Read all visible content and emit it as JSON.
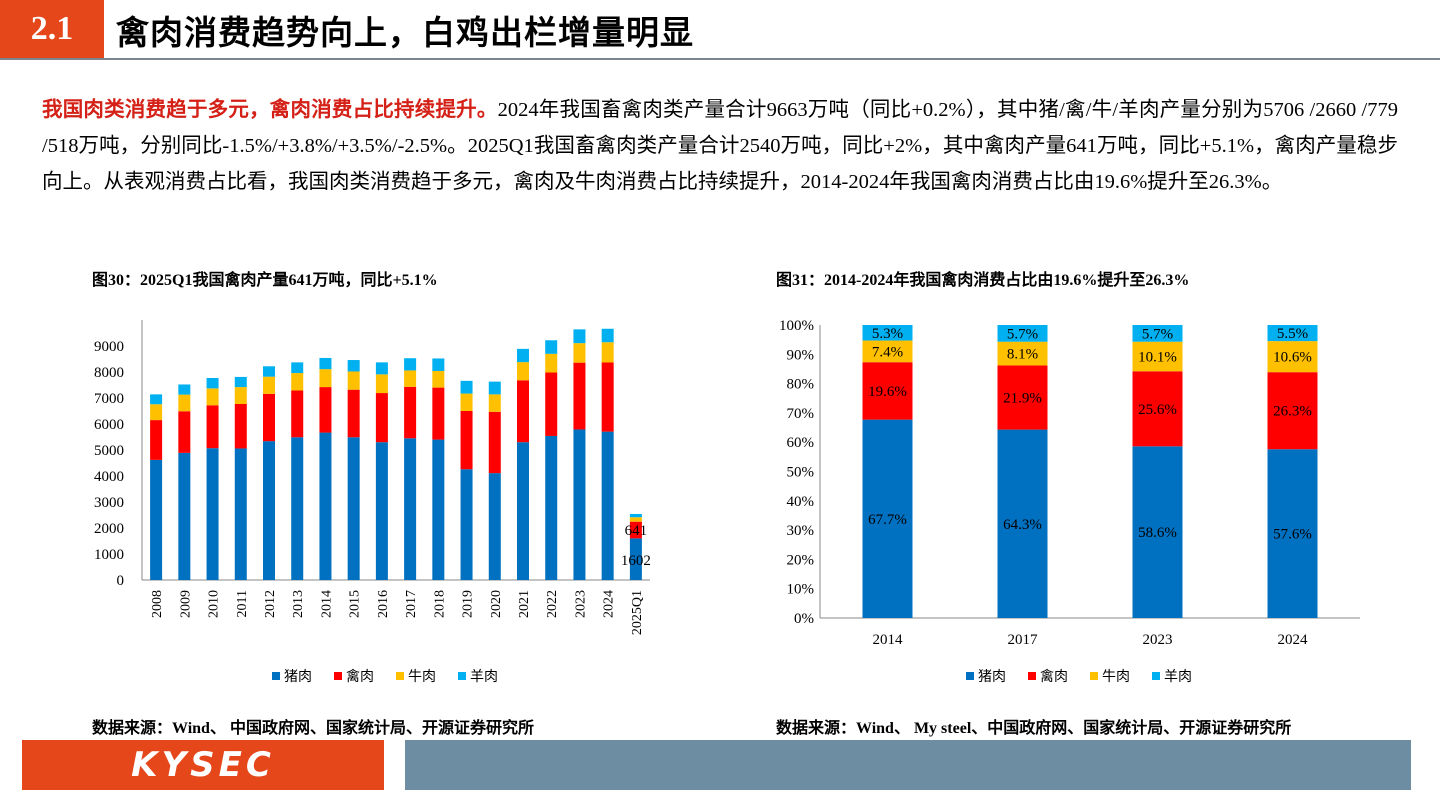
{
  "header": {
    "section_number": "2.1",
    "title": "禽肉消费趋势向上，白鸡出栏增量明显"
  },
  "summary": {
    "lead": "我国肉类消费趋于多元，禽肉消费占比持续提升。",
    "body": "2024年我国畜禽肉类产量合计9663万吨（同比+0.2%），其中猪/禽/牛/羊肉产量分别为5706 /2660 /779 /518万吨，分别同比-1.5%/+3.8%/+3.5%/-2.5%。2025Q1我国畜禽肉类产量合计2540万吨，同比+2%，其中禽肉产量641万吨，同比+5.1%，禽肉产量稳步向上。从表观消费占比看，我国肉类消费趋于多元，禽肉及牛肉消费占比持续提升，2014-2024年我国禽肉消费占比由19.6%提升至26.3%。"
  },
  "figure30": {
    "title": "图30：2025Q1我国禽肉产量641万吨，同比+5.1%",
    "source": "数据来源：Wind、 中国政府网、国家统计局、开源证券研究所"
  },
  "figure31": {
    "title": "图31：2014-2024年我国禽肉消费占比由19.6%提升至26.3%",
    "source": "数据来源：Wind、 My steel、中国政府网、国家统计局、开源证券研究所"
  },
  "footer": {
    "logo": "KYSEC"
  },
  "colors": {
    "pork": "#0070c0",
    "poultry": "#ff0000",
    "beef": "#ffc000",
    "mutton": "#00b0f0",
    "accent": "#e5471a",
    "footer_bar": "#6c8da2"
  },
  "chart_data": [
    {
      "type": "bar",
      "stacked": true,
      "categories": [
        "2008",
        "2009",
        "2010",
        "2011",
        "2012",
        "2013",
        "2014",
        "2015",
        "2016",
        "2017",
        "2018",
        "2019",
        "2020",
        "2021",
        "2022",
        "2023",
        "2024",
        "2025Q1"
      ],
      "series": [
        {
          "name": "猪肉",
          "values": [
            4620,
            4890,
            5070,
            5060,
            5340,
            5490,
            5670,
            5490,
            5300,
            5450,
            5400,
            4260,
            4110,
            5300,
            5540,
            5790,
            5706,
            1602
          ]
        },
        {
          "name": "禽肉",
          "values": [
            1530,
            1600,
            1650,
            1710,
            1820,
            1800,
            1750,
            1830,
            1890,
            1980,
            2000,
            2240,
            2360,
            2380,
            2440,
            2570,
            2660,
            641
          ]
        },
        {
          "name": "牛肉",
          "values": [
            610,
            640,
            650,
            650,
            660,
            670,
            690,
            700,
            720,
            630,
            640,
            670,
            670,
            700,
            720,
            750,
            779,
            170
          ]
        },
        {
          "name": "羊肉",
          "values": [
            380,
            390,
            400,
            390,
            400,
            410,
            430,
            440,
            460,
            470,
            480,
            490,
            490,
            510,
            520,
            530,
            518,
            127
          ]
        }
      ],
      "data_labels": [
        {
          "category": "2025Q1",
          "series": "禽肉",
          "text": "641"
        },
        {
          "category": "2025Q1",
          "series": "猪肉",
          "text": "1602"
        }
      ],
      "y_ticks": [
        "0",
        "1000",
        "2000",
        "3000",
        "4000",
        "5000",
        "6000",
        "7000",
        "8000",
        "9000"
      ],
      "ylim": [
        0,
        10000
      ],
      "legend_position": "bottom",
      "grid": false
    },
    {
      "type": "bar",
      "stacked": true,
      "percent": true,
      "categories": [
        "2014",
        "2017",
        "2023",
        "2024"
      ],
      "series": [
        {
          "name": "猪肉",
          "values": [
            67.7,
            64.3,
            58.6,
            57.6
          ],
          "labels": [
            "67.7%",
            "64.3%",
            "58.6%",
            "57.6%"
          ]
        },
        {
          "name": "禽肉",
          "values": [
            19.6,
            21.9,
            25.6,
            26.3
          ],
          "labels": [
            "19.6%",
            "21.9%",
            "25.6%",
            "26.3%"
          ]
        },
        {
          "name": "牛肉",
          "values": [
            7.4,
            8.1,
            10.1,
            10.6
          ],
          "labels": [
            "7.4%",
            "8.1%",
            "10.1%",
            "10.6%"
          ]
        },
        {
          "name": "羊肉",
          "values": [
            5.3,
            5.7,
            5.7,
            5.5
          ],
          "labels": [
            "5.3%",
            "5.7%",
            "5.7%",
            "5.5%"
          ]
        }
      ],
      "y_ticks": [
        "0%",
        "10%",
        "20%",
        "30%",
        "40%",
        "50%",
        "60%",
        "70%",
        "80%",
        "90%",
        "100%"
      ],
      "ylim": [
        0,
        100
      ],
      "legend_position": "bottom",
      "grid": false
    }
  ]
}
